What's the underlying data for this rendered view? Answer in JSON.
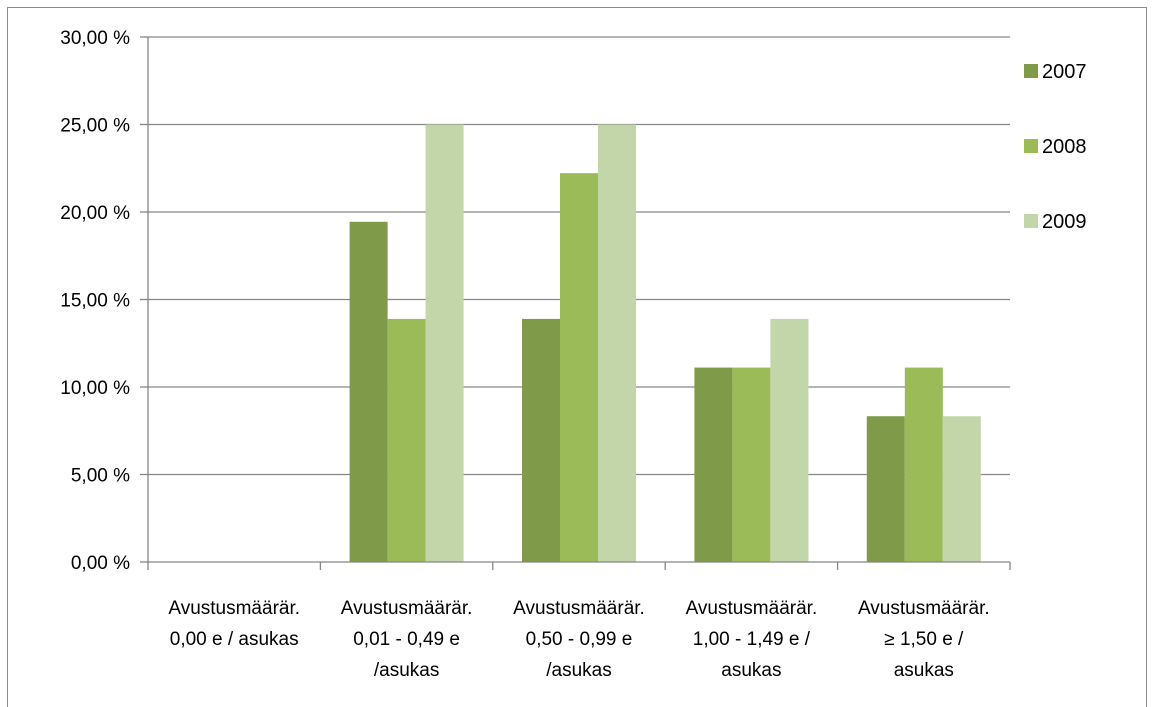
{
  "chart_data": {
    "type": "bar",
    "title": "",
    "xlabel": "",
    "ylabel": "",
    "ylim": [
      0,
      30
    ],
    "y_tick_labels": [
      "0,00 %",
      "5,00 %",
      "10,00 %",
      "15,00 %",
      "20,00 %",
      "25,00 %",
      "30,00 %"
    ],
    "y_tick_values": [
      0,
      5,
      10,
      15,
      20,
      25,
      30
    ],
    "grid": true,
    "legend_position": "right",
    "categories": [
      [
        "Avustusmäärär.",
        "0,00 e / asukas"
      ],
      [
        "Avustusmäärär.",
        "0,01 - 0,49 e",
        "/asukas"
      ],
      [
        "Avustusmäärär.",
        "0,50 - 0,99 e",
        "/asukas"
      ],
      [
        "Avustusmäärär.",
        "1,00 - 1,49 e /",
        "asukas"
      ],
      [
        "Avustusmäärär.",
        "≥ 1,50 e /",
        "asukas"
      ]
    ],
    "series": [
      {
        "name": "2007",
        "color": "#7f9a48",
        "values": [
          0,
          19.44,
          13.89,
          11.11,
          8.33
        ]
      },
      {
        "name": "2008",
        "color": "#9bbb59",
        "values": [
          0,
          13.89,
          22.22,
          11.11,
          11.11
        ]
      },
      {
        "name": "2009",
        "color": "#c3d6a9",
        "values": [
          0,
          25.0,
          25.0,
          13.89,
          8.33
        ]
      }
    ]
  }
}
